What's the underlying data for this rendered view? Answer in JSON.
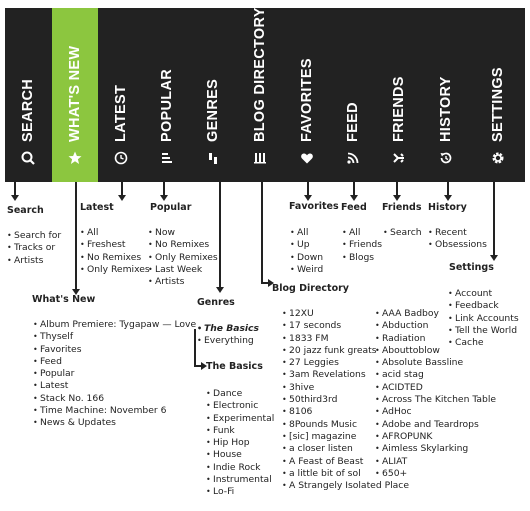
{
  "tabs": [
    {
      "id": "search",
      "label": "SEARCH",
      "icon": "search-icon"
    },
    {
      "id": "whats-new",
      "label": "WHAT'S NEW",
      "icon": "star-icon"
    },
    {
      "id": "latest",
      "label": "LATEST",
      "icon": "clock-icon"
    },
    {
      "id": "popular",
      "label": "POPULAR",
      "icon": "bars-icon"
    },
    {
      "id": "genres",
      "label": "GENRES",
      "icon": "genres-icon"
    },
    {
      "id": "blog-directory",
      "label": "BLOG DIRECTORY",
      "icon": "directory-icon"
    },
    {
      "id": "favorites",
      "label": "FAVORITES",
      "icon": "heart-icon"
    },
    {
      "id": "feed",
      "label": "FEED",
      "icon": "rss-icon"
    },
    {
      "id": "friends",
      "label": "FRIENDS",
      "icon": "friends-icon"
    },
    {
      "id": "history",
      "label": "HISTORY",
      "icon": "history-icon"
    },
    {
      "id": "settings",
      "label": "SETTINGS",
      "icon": "gear-icon"
    }
  ],
  "sections": {
    "search": {
      "heading": "Search",
      "items": [
        "Search for",
        "Tracks or",
        "Artists"
      ]
    },
    "whats_new": {
      "heading": "What's New",
      "items": [
        "Album Premiere: Tygapaw — Love",
        "Thyself",
        "Favorites",
        "Feed",
        "Popular",
        "Latest",
        "Stack No. 166",
        "Time Machine: November 6",
        "News & Updates"
      ]
    },
    "latest": {
      "heading": "Latest",
      "items": [
        "All",
        "Freshest",
        "No Remixes",
        "Only Remixes"
      ]
    },
    "popular": {
      "heading": "Popular",
      "items": [
        "Now",
        "No Remixes",
        "Only Remixes",
        "Last Week",
        "Artists"
      ]
    },
    "genres": {
      "heading": "Genres",
      "items": [
        "The Basics",
        "Everything"
      ],
      "sub_heading": "The Basics",
      "sub_items": [
        "Dance",
        "Electronic",
        "Experimental",
        "Funk",
        "Hip Hop",
        "House",
        "Indie Rock",
        "Instrumental",
        "Lo-Fi"
      ]
    },
    "blog_directory": {
      "heading": "Blog Directory",
      "col1": [
        "12XU",
        "17 seconds",
        "1833 FM",
        "20 jazz funk greats",
        "27 Leggies",
        "3am Revelations",
        "3hive",
        "50third3rd",
        "8106",
        "8Pounds Music",
        "[sic] magazine",
        "a closer listen",
        "A Feast of Beast",
        "a little bit of sol",
        "A Strangely Isolated Place"
      ],
      "col2": [
        "AAA Badboy",
        "Abduction",
        "Radiation",
        "Abouttoblow",
        "Absolute Bassline",
        "acid stag",
        "ACIDTED",
        "Across The Kitchen Table",
        "AdHoc",
        "Adobe and Teardrops",
        "AFROPUNK",
        "Aimless Skylarking",
        "ALIAT",
        "650+"
      ]
    },
    "favorites": {
      "heading": "Favorites",
      "items": [
        "All",
        "Up",
        "Down",
        "Weird"
      ]
    },
    "feed": {
      "heading": "Feed",
      "items": [
        "All",
        "Friends",
        "Blogs"
      ]
    },
    "friends": {
      "heading": "Friends",
      "items": [
        "Search"
      ]
    },
    "history": {
      "heading": "History",
      "items": [
        "Recent",
        "Obsessions"
      ]
    },
    "settings": {
      "heading": "Settings",
      "items": [
        "Account",
        "Feedback",
        "Link Accounts",
        "Tell the World",
        "Cache"
      ]
    }
  },
  "colors": {
    "bar": "#222222",
    "active": "#8cc63f",
    "text": "#222222"
  }
}
